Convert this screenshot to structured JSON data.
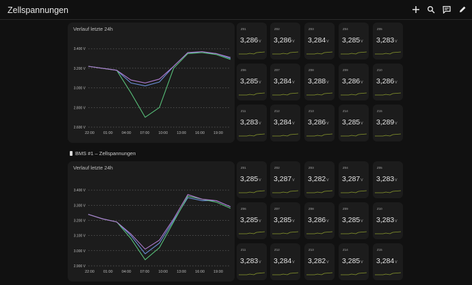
{
  "header": {
    "title": "Zellspannungen"
  },
  "toolbar": {
    "icons": [
      "plus-icon",
      "search-icon",
      "chat-icon",
      "pencil-icon"
    ]
  },
  "section2": {
    "title": "BMS #1 – Zellspannungen"
  },
  "charts": [
    {
      "title": "Verlauf letzte 24h",
      "y_ticks": [
        "3.400 V",
        "3.200 V",
        "3.000 V",
        "2.800 V",
        "2.600 V"
      ],
      "x_ticks": [
        "22:00",
        "01:00",
        "04:00",
        "07:00",
        "10:00",
        "13:00",
        "16:00",
        "19:00"
      ]
    },
    {
      "title": "Verlauf letzte 24h",
      "y_ticks": [
        "3.400 V",
        "3.300 V",
        "3.200 V",
        "3.100 V",
        "3.000 V",
        "2.900 V"
      ],
      "x_ticks": [
        "22:00",
        "01:00",
        "04:00",
        "07:00",
        "10:00",
        "13:00",
        "16:00",
        "19:00"
      ]
    }
  ],
  "chart_data": [
    {
      "type": "line",
      "title": "Verlauf letzte 24h",
      "x": [
        "22:00",
        "01:00",
        "04:00",
        "06:00",
        "07:00",
        "08:00",
        "10:00",
        "13:00",
        "16:00",
        "19:00",
        "21:00"
      ],
      "ylim": [
        2.6,
        3.45
      ],
      "series": [
        {
          "values": [
            3.22,
            3.2,
            3.18,
            3.05,
            3.02,
            3.06,
            3.22,
            3.36,
            3.36,
            3.35,
            3.3
          ]
        },
        {
          "values": [
            3.22,
            3.2,
            3.18,
            2.95,
            2.7,
            2.8,
            3.2,
            3.35,
            3.36,
            3.34,
            3.29
          ]
        },
        {
          "values": [
            3.22,
            3.2,
            3.18,
            3.08,
            3.05,
            3.09,
            3.22,
            3.36,
            3.37,
            3.35,
            3.31
          ]
        }
      ]
    },
    {
      "type": "line",
      "title": "Verlauf letzte 24h",
      "x": [
        "22:00",
        "01:00",
        "04:00",
        "06:00",
        "07:00",
        "08:00",
        "10:00",
        "13:00",
        "16:00",
        "19:00",
        "21:00"
      ],
      "ylim": [
        2.9,
        3.45
      ],
      "series": [
        {
          "values": [
            3.24,
            3.21,
            3.19,
            3.1,
            2.98,
            3.05,
            3.2,
            3.35,
            3.33,
            3.33,
            3.29
          ]
        },
        {
          "values": [
            3.24,
            3.21,
            3.19,
            3.08,
            2.94,
            3.02,
            3.19,
            3.36,
            3.34,
            3.32,
            3.28
          ]
        },
        {
          "values": [
            3.24,
            3.21,
            3.19,
            3.11,
            3.01,
            3.07,
            3.21,
            3.37,
            3.34,
            3.33,
            3.29
          ]
        }
      ]
    }
  ],
  "groups": [
    {
      "tiles": [
        {
          "label": "Z01",
          "value": "3,286",
          "unit": "V"
        },
        {
          "label": "Z02",
          "value": "3,286",
          "unit": "V"
        },
        {
          "label": "Z03",
          "value": "3,284",
          "unit": "V"
        },
        {
          "label": "Z04",
          "value": "3,285",
          "unit": "V"
        },
        {
          "label": "Z05",
          "value": "3,283",
          "unit": "V"
        },
        {
          "label": "Z06",
          "value": "3,285",
          "unit": "V"
        },
        {
          "label": "Z07",
          "value": "3,284",
          "unit": "V"
        },
        {
          "label": "Z08",
          "value": "3,288",
          "unit": "V"
        },
        {
          "label": "Z09",
          "value": "3,286",
          "unit": "V"
        },
        {
          "label": "Z10",
          "value": "3,286",
          "unit": "V"
        },
        {
          "label": "Z11",
          "value": "3,283",
          "unit": "V"
        },
        {
          "label": "Z12",
          "value": "3,284",
          "unit": "V"
        },
        {
          "label": "Z13",
          "value": "3,286",
          "unit": "V"
        },
        {
          "label": "Z14",
          "value": "3,285",
          "unit": "V"
        },
        {
          "label": "Z15",
          "value": "3,289",
          "unit": "V"
        }
      ]
    },
    {
      "tiles": [
        {
          "label": "Z01",
          "value": "3,285",
          "unit": "V"
        },
        {
          "label": "Z02",
          "value": "3,287",
          "unit": "V"
        },
        {
          "label": "Z03",
          "value": "3,282",
          "unit": "V"
        },
        {
          "label": "Z04",
          "value": "3,287",
          "unit": "V"
        },
        {
          "label": "Z05",
          "value": "3,283",
          "unit": "V"
        },
        {
          "label": "Z06",
          "value": "3,285",
          "unit": "V"
        },
        {
          "label": "Z07",
          "value": "3,285",
          "unit": "V"
        },
        {
          "label": "Z08",
          "value": "3,286",
          "unit": "V"
        },
        {
          "label": "Z09",
          "value": "3,285",
          "unit": "V"
        },
        {
          "label": "Z10",
          "value": "3,283",
          "unit": "V"
        },
        {
          "label": "Z11",
          "value": "3,283",
          "unit": "V"
        },
        {
          "label": "Z12",
          "value": "3,284",
          "unit": "V"
        },
        {
          "label": "Z13",
          "value": "3,282",
          "unit": "V"
        },
        {
          "label": "Z14",
          "value": "3,285",
          "unit": "V"
        },
        {
          "label": "Z15",
          "value": "3,284",
          "unit": "V"
        }
      ]
    }
  ],
  "colors": {
    "background": "#111111",
    "card": "#1c1c1c",
    "sparkline": "#8a9a2c"
  }
}
